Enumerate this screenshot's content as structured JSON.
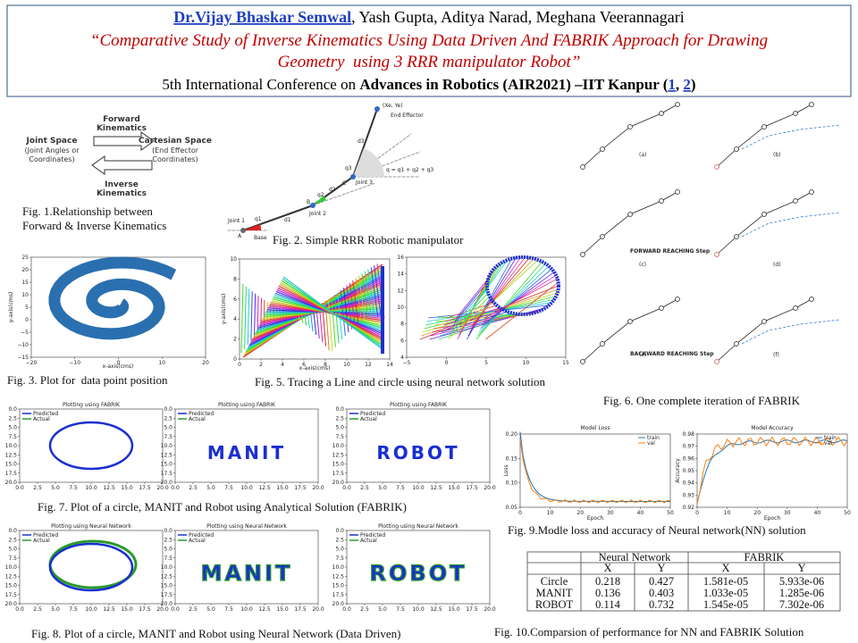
{
  "header": {
    "lead_author": "Dr.Vijay Bhaskar Semwal",
    "coauthors": ", Yash Gupta, Aditya Narad, Meghana Veerannagari",
    "title_line1": "“Comparative Study of Inverse Kinematics Using Data Driven And FABRIK Approach for Drawing",
    "title_line2": "Geometry  using 3 RRR manipulator Robot”",
    "conference_prefix": "5th International Conference on ",
    "conference_name": "Advances in Robotics (AIR2021) –IIT Kanpur (",
    "link1": "1",
    "separator": ", ",
    "link2": "2",
    "closing": ")"
  },
  "fig1": {
    "forward": [
      "Forward",
      "Kinematics"
    ],
    "joint_space": "Joint Space",
    "joint_sub": [
      "(Joint Angles or",
      "Coordinates)"
    ],
    "cartesian": "Cartesian Space",
    "cartesian_sub": [
      "(End Effector",
      "Coordinates)"
    ],
    "inverse": [
      "Inverse",
      "Kinematics"
    ],
    "caption": [
      "Fig. 1.Relationship between",
      "Forward & Inverse Kinematics"
    ]
  },
  "fig2": {
    "labels": [
      "(Xe, Ye)",
      "End Effector",
      "d3",
      "q3",
      "Joint 3",
      "q = q1 + q2 + q3",
      "C",
      "d2",
      "q2",
      "B",
      "Joint 2",
      "d1",
      "q1",
      "Joint 1",
      "A",
      "Base"
    ],
    "caption": "Fig. 2. Simple RRR Robotic manipulator"
  },
  "fig3": {
    "xlabel": "x-axis(cms)",
    "ylabel": "y-axis(cms)",
    "xticks": [
      "−20",
      "−10",
      "0",
      "10",
      "20"
    ],
    "yticks": [
      "25",
      "20",
      "15",
      "10",
      "5",
      "0",
      "−5",
      "−10",
      "−15"
    ],
    "caption": "Fig. 3. Plot for  data point position"
  },
  "fig5": {
    "xlabel": "x-axis(cms)",
    "ylabel": "y-axis(cms)",
    "left_xticks": [
      "0",
      "2",
      "4",
      "6",
      "8",
      "10",
      "12",
      "14"
    ],
    "left_yticks": [
      "10",
      "8",
      "6",
      "4",
      "2",
      "0"
    ],
    "right_xticks": [
      "−5",
      "0",
      "5",
      "10",
      "15"
    ],
    "right_yticks": [
      "16",
      "14",
      "12",
      "10",
      "8",
      "6",
      "4"
    ],
    "caption": "Fig. 5. Tracing a Line and circle using neural network solution"
  },
  "fig6": {
    "panels": [
      "(a)",
      "(b)",
      "(c)",
      "(d)",
      "(e)",
      "(f)"
    ],
    "forward_step": "FORWARD REACHING Step",
    "backward_step": "BACKWARD REACHING Step",
    "caption": "Fig. 6. One complete iteration of FABRIK"
  },
  "fig7": {
    "titles": [
      "Plotting using FABRIK",
      "Plotting using FABRIK",
      "Plotting using FABRIK"
    ],
    "legend": [
      "Predicted",
      "Actual"
    ],
    "shapes": [
      "MANIT",
      "ROBOT"
    ],
    "caption": "Fig. 7. Plot of a circle, MANIT and Robot using Analytical Solution (FABRIK)"
  },
  "fig8": {
    "titles": [
      "Plotting using Neural Network",
      "Plotting using Neural Network",
      "Plotting using Neural Network"
    ],
    "legend": [
      "Predicted",
      "Actual"
    ],
    "shapes": [
      "MANIT",
      "ROBOT"
    ],
    "caption": "Fig. 8. Plot of a circle, MANIT and Robot using Neural Network (Data Driven)"
  },
  "plot_ticks": [
    "0.0",
    "2.5",
    "5.0",
    "7.5",
    "10.0",
    "12.5",
    "15.0",
    "17.5",
    "20.0"
  ],
  "fig9": {
    "loss_title": "Model Loss",
    "accuracy_title": "Model Accuracy",
    "legend": [
      "train",
      "val"
    ],
    "xlabel": "Epoch",
    "loss_ylabel": "Loss",
    "accuracy_ylabel": "Accuracy",
    "xticks": [
      "0",
      "10",
      "20",
      "30",
      "40",
      "50"
    ],
    "loss_yticks": [
      "0.20",
      "0.15",
      "0.10",
      "0.05"
    ],
    "accuracy_yticks": [
      "0.98",
      "0.97",
      "0.96",
      "0.95",
      "0.94",
      "0.93",
      "0.92"
    ],
    "caption": "Fig. 9.Modle loss and accuracy of Neural network(NN) solution"
  },
  "table": {
    "group_header": [
      "Neural Network",
      "FABRIK"
    ],
    "sub_header": [
      "X",
      "Y",
      "X",
      "Y"
    ],
    "rows": [
      [
        "Circle",
        "0.218",
        "0.427",
        "1.581e-05",
        "5.933e-06"
      ],
      [
        "MANIT",
        "0.136",
        "0.403",
        "1.033e-05",
        "1.285e-06"
      ],
      [
        "ROBOT",
        "0.114",
        "0.732",
        "1.545e-05",
        "7.302e-06"
      ]
    ],
    "caption": "Fig. 10.Comparsion of performance for NN and FABRIK Solution"
  }
}
